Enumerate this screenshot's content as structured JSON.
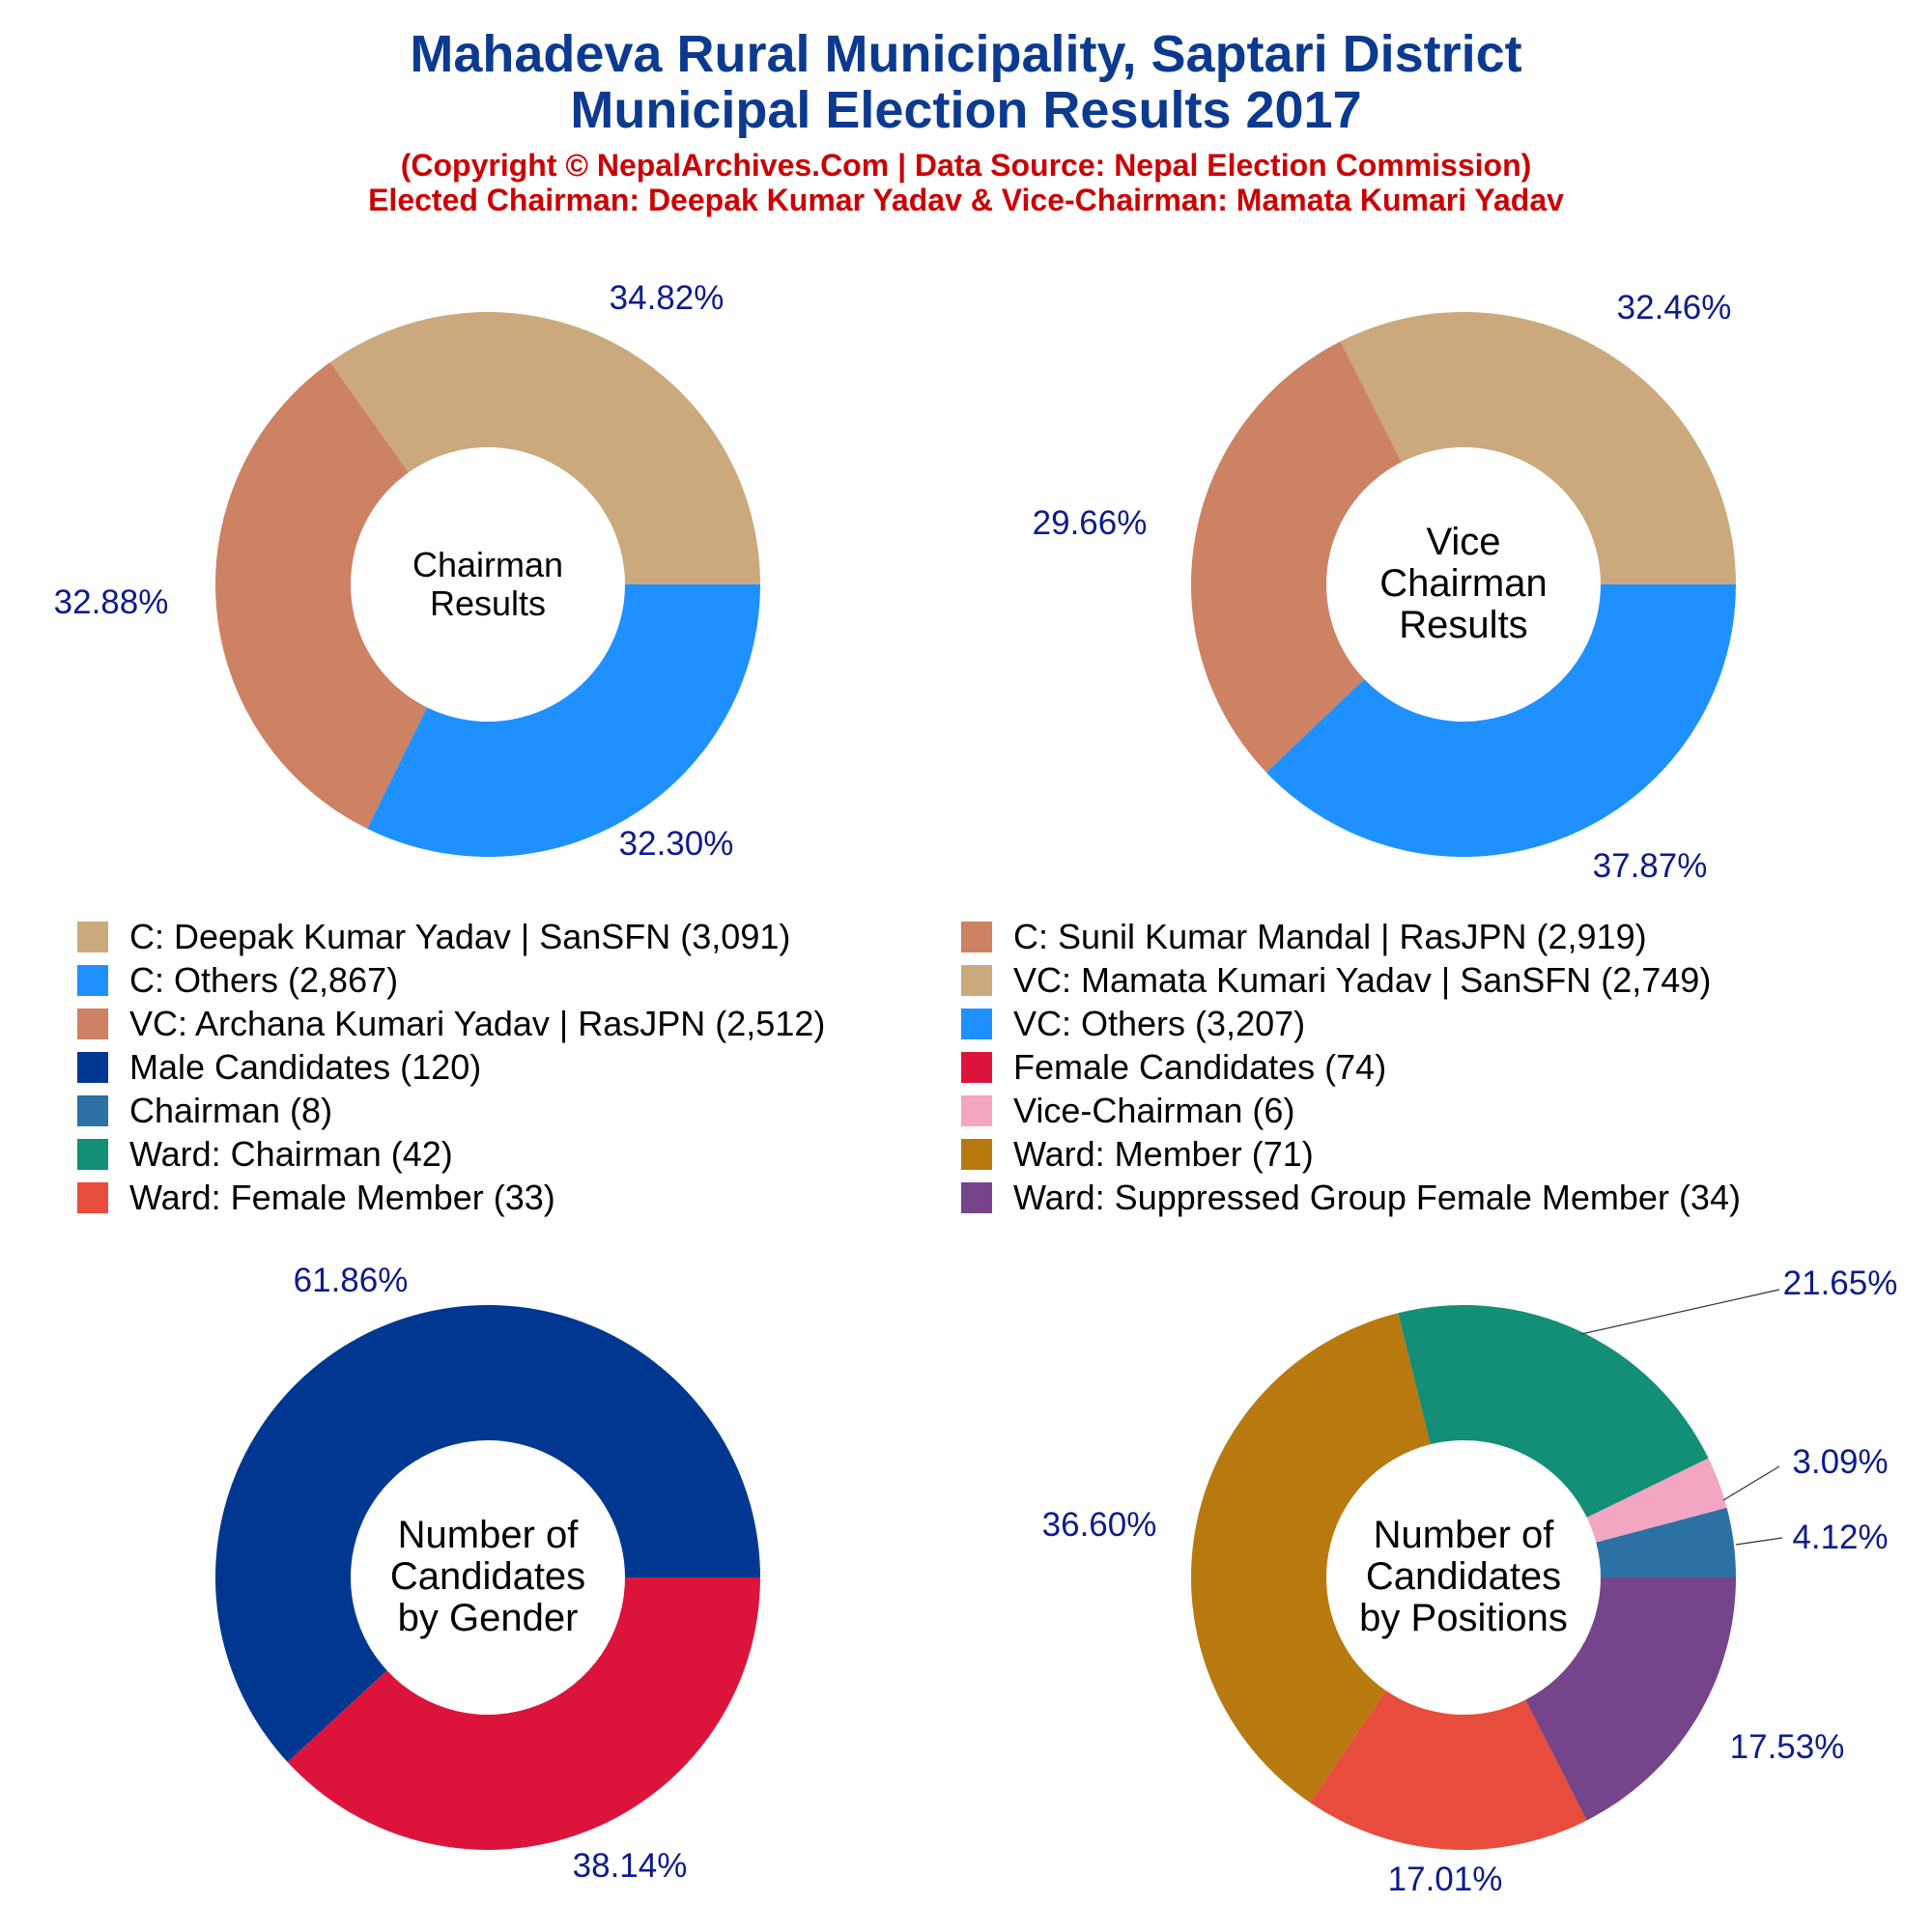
{
  "header": {
    "title_line1": "Mahadeva Rural Municipality, Saptari District",
    "title_line2": "Municipal Election Results 2017",
    "subtitle_line1": "(Copyright © NepalArchives.Com | Data Source: Nepal Election Commission)",
    "subtitle_line2": "Elected Chairman: Deepak Kumar Yadav & Vice-Chairman: Mamata Kumari Yadav"
  },
  "legend": [
    {
      "label": "C: Deepak Kumar Yadav | SanSFN (3,091)",
      "color": "#cba97c"
    },
    {
      "label": "C: Sunil Kumar Mandal | RasJPN (2,919)",
      "color": "#cd8264"
    },
    {
      "label": "C: Others (2,867)",
      "color": "#1e90ff"
    },
    {
      "label": "VC: Mamata Kumari Yadav | SanSFN (2,749)",
      "color": "#cba97c"
    },
    {
      "label": "VC: Archana Kumari Yadav | RasJPN (2,512)",
      "color": "#cd8264"
    },
    {
      "label": "VC: Others (3,207)",
      "color": "#1e90ff"
    },
    {
      "label": "Male Candidates (120)",
      "color": "#003891"
    },
    {
      "label": "Female Candidates (74)",
      "color": "#dc143c"
    },
    {
      "label": "Chairman (8)",
      "color": "#2c71a4"
    },
    {
      "label": "Vice-Chairman (6)",
      "color": "#f3a6c1"
    },
    {
      "label": "Ward: Chairman (42)",
      "color": "#128f76"
    },
    {
      "label": "Ward: Member (71)",
      "color": "#b8790f"
    },
    {
      "label": "Ward: Female Member (33)",
      "color": "#e74c3c"
    },
    {
      "label": "Ward: Suppressed Group Female Member (34)",
      "color": "#76448a"
    }
  ],
  "chart_data": [
    {
      "type": "pie",
      "center_label": [
        "Chairman",
        "Results"
      ],
      "slices": [
        {
          "value": 3091,
          "percent_label": "34.82%",
          "color": "#cba97c"
        },
        {
          "value": 2919,
          "percent_label": "32.88%",
          "color": "#cd8264"
        },
        {
          "value": 2867,
          "percent_label": "32.30%",
          "color": "#1e90ff"
        }
      ]
    },
    {
      "type": "pie",
      "center_label": [
        "Vice",
        "Chairman",
        "Results"
      ],
      "slices": [
        {
          "value": 2749,
          "percent_label": "32.46%",
          "color": "#cba97c"
        },
        {
          "value": 2512,
          "percent_label": "29.66%",
          "color": "#cd8264"
        },
        {
          "value": 3207,
          "percent_label": "37.87%",
          "color": "#1e90ff"
        }
      ]
    },
    {
      "type": "pie",
      "center_label": [
        "Number of",
        "Candidates",
        "by Gender"
      ],
      "slices": [
        {
          "value": 120,
          "percent_label": "61.86%",
          "color": "#003891"
        },
        {
          "value": 74,
          "percent_label": "38.14%",
          "color": "#dc143c"
        }
      ]
    },
    {
      "type": "pie",
      "center_label": [
        "Number of",
        "Candidates",
        "by Positions"
      ],
      "slices": [
        {
          "value": 8,
          "percent_label": "4.12%",
          "color": "#2c71a4"
        },
        {
          "value": 6,
          "percent_label": "3.09%",
          "color": "#f3a6c1"
        },
        {
          "value": 42,
          "percent_label": "21.65%",
          "color": "#128f76"
        },
        {
          "value": 71,
          "percent_label": "36.60%",
          "color": "#b8790f"
        },
        {
          "value": 33,
          "percent_label": "17.01%",
          "color": "#e74c3c"
        },
        {
          "value": 34,
          "percent_label": "17.53%",
          "color": "#76448a"
        }
      ]
    }
  ]
}
